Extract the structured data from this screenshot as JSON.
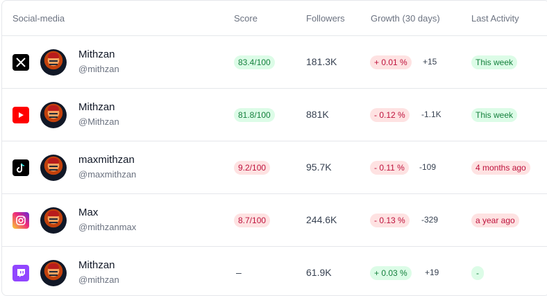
{
  "table": {
    "headers": {
      "social": "Social-media",
      "score": "Score",
      "followers": "Followers",
      "growth": "Growth (30 days)",
      "last_activity": "Last Activity"
    },
    "rows": [
      {
        "platform_icon": "x-icon",
        "name": "Mithzan",
        "handle": "@mithzan",
        "score": "83.4/100",
        "score_status": "good",
        "followers": "181.3K",
        "growth_pct": "+ 0.01 %",
        "growth_status": "negative-tone",
        "growth_abs": "+15",
        "last_activity": "This week",
        "activity_status": "good"
      },
      {
        "platform_icon": "youtube-icon",
        "name": "Mithzan",
        "handle": "@Mithzan",
        "score": "81.8/100",
        "score_status": "good",
        "followers": "881K",
        "growth_pct": "- 0.12 %",
        "growth_status": "bad",
        "growth_abs": "-1.1K",
        "last_activity": "This week",
        "activity_status": "good"
      },
      {
        "platform_icon": "tiktok-icon",
        "name": "maxmithzan",
        "handle": "@maxmithzan",
        "score": "9.2/100",
        "score_status": "bad",
        "followers": "95.7K",
        "growth_pct": "- 0.11 %",
        "growth_status": "bad",
        "growth_abs": "-109",
        "last_activity": "4 months ago",
        "activity_status": "bad"
      },
      {
        "platform_icon": "instagram-icon",
        "name": "Max",
        "handle": "@mithzanmax",
        "score": "8.7/100",
        "score_status": "bad",
        "followers": "244.6K",
        "growth_pct": "- 0.13 %",
        "growth_status": "bad",
        "growth_abs": "-329",
        "last_activity": "a year ago",
        "activity_status": "bad"
      },
      {
        "platform_icon": "twitch-icon",
        "name": "Mithzan",
        "handle": "@mithzan",
        "score": "–",
        "score_status": "none",
        "followers": "61.9K",
        "growth_pct": "+ 0.03 %",
        "growth_status": "good",
        "growth_abs": "+19",
        "last_activity": "-",
        "activity_status": "good"
      }
    ]
  },
  "colors": {
    "good_bg": "#dcfce7",
    "good_text": "#15803d",
    "bad_bg": "#fee2e2",
    "bad_text": "#be123c",
    "youtube": "#ff0000",
    "twitch": "#9146ff"
  }
}
